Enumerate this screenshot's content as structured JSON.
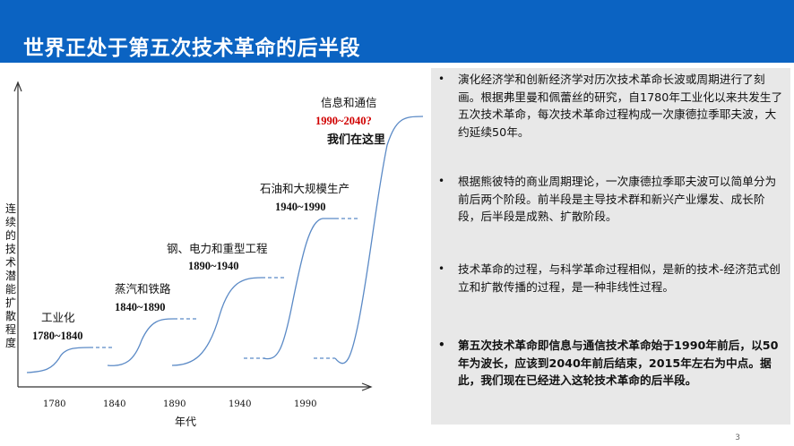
{
  "slide": {
    "title": "世界正处于第五次技术革命的后半段",
    "page_number": "3"
  },
  "chart": {
    "ylabel": "连续的技术潜能扩散程度",
    "xlabel": "年代",
    "xticks": [
      "1780",
      "1840",
      "1890",
      "1940",
      "1990"
    ],
    "stages": [
      {
        "name": "工业化",
        "years": "1780~1840"
      },
      {
        "name": "蒸汽和铁路",
        "years": "1840~1890"
      },
      {
        "name": "钢、电力和重型工程",
        "years": "1890~1940"
      },
      {
        "name": "石油和大规模生产",
        "years": "1940~1990"
      },
      {
        "name": "信息和通信",
        "years": "1990~2040?"
      }
    ],
    "here_label": "我们在这里",
    "colors": {
      "curve": "#5b8ac6",
      "axis": "#333333",
      "highlight": "#d00000"
    }
  },
  "panel": {
    "bullets": [
      {
        "text": "演化经济学和创新经济学对历次技术革命长波或周期进行了刻画。根据弗里曼和佩蕾丝的研究，自1780年工业化以来共发生了五次技术革命，每次技术革命过程构成一次康德拉季耶夫波，大约延续50年。",
        "bold": false
      },
      {
        "text": "根据熊彼特的商业周期理论，一次康德拉季耶夫波可以简单分为前后两个阶段。前半段是主导技术群和新兴产业爆发、成长阶段，后半段是成熟、扩散阶段。",
        "bold": false
      },
      {
        "text": "技术革命的过程，与科学革命过程相似，是新的技术-经济范式创立和扩散传播的过程，是一种非线性过程。",
        "bold": false
      },
      {
        "text": "第五次技术革命即信息与通信技术革命始于1990年前后，以50年为波长，应该到2040年前后结束，2015年左右为中点。据此，我们现在已经进入这轮技术革命的后半段。",
        "bold": true
      }
    ],
    "bullet_symbol": "•"
  }
}
